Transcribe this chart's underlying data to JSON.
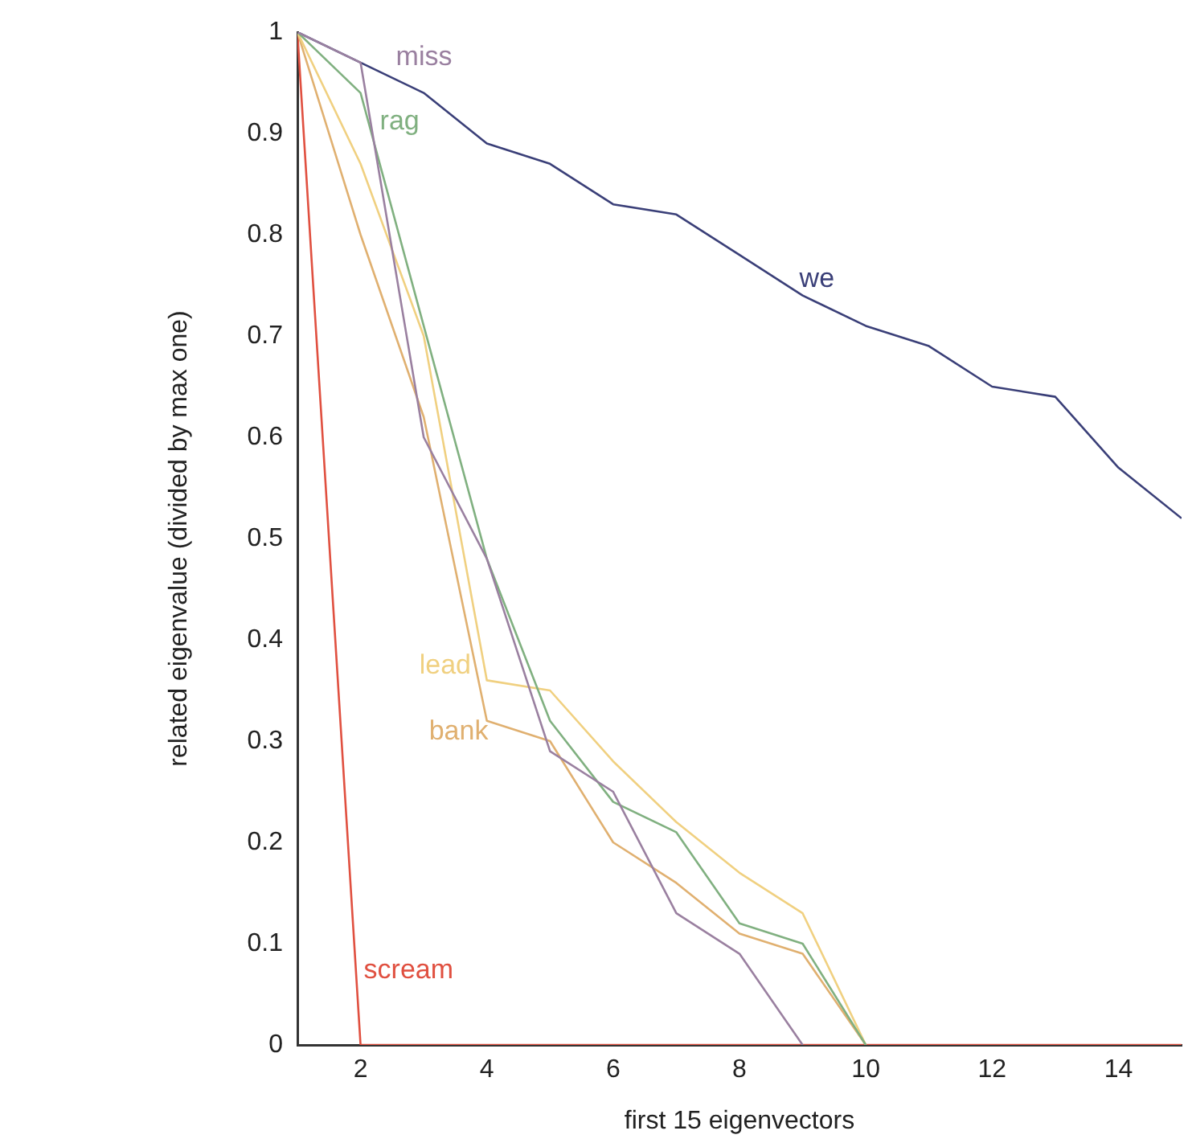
{
  "chart_data": {
    "type": "line",
    "xlabel": "first 15 eigenvectors",
    "ylabel": "related eigenvalue (divided by max one)",
    "x": [
      1,
      2,
      3,
      4,
      5,
      6,
      7,
      8,
      9,
      10,
      11,
      12,
      13,
      14,
      15
    ],
    "xlim": [
      1,
      15
    ],
    "xticks": [
      2,
      4,
      6,
      8,
      10,
      12,
      14
    ],
    "ylim": [
      0,
      1
    ],
    "yticks": [
      0,
      0.1,
      0.2,
      0.3,
      0.4,
      0.5,
      0.6,
      0.7,
      0.8,
      0.9,
      1
    ],
    "grid": false,
    "legend": false,
    "marker": "none",
    "line_style": "solid",
    "series": [
      {
        "name": "miss",
        "color": "#9a80a0",
        "values": [
          1,
          0.97,
          0.6,
          0.48,
          0.29,
          0.25,
          0.13,
          0.09,
          0,
          null,
          null,
          null,
          null,
          null,
          null
        ]
      },
      {
        "name": "rag",
        "color": "#80b080",
        "values": [
          1,
          0.94,
          0.71,
          0.48,
          0.32,
          0.24,
          0.21,
          0.12,
          0.1,
          0,
          null,
          null,
          null,
          null,
          null
        ]
      },
      {
        "name": "we",
        "color": "#3a3f78",
        "values": [
          1,
          0.97,
          0.94,
          0.89,
          0.87,
          0.83,
          0.82,
          0.78,
          0.74,
          0.71,
          0.69,
          0.65,
          0.64,
          0.57,
          0.52
        ]
      },
      {
        "name": "lead",
        "color": "#f0d080",
        "values": [
          1,
          0.87,
          0.7,
          0.36,
          0.35,
          0.28,
          0.22,
          0.17,
          0.13,
          0,
          null,
          null,
          null,
          null,
          null
        ]
      },
      {
        "name": "bank",
        "color": "#e0b070",
        "values": [
          1,
          0.8,
          0.62,
          0.32,
          0.3,
          0.2,
          0.16,
          0.11,
          0.09,
          0,
          null,
          null,
          null,
          null,
          null
        ]
      },
      {
        "name": "scream",
        "color": "#e05040",
        "values": [
          1,
          0,
          0,
          0,
          0,
          0,
          0,
          0,
          0,
          0,
          0,
          0,
          0,
          0,
          0
        ]
      }
    ]
  }
}
